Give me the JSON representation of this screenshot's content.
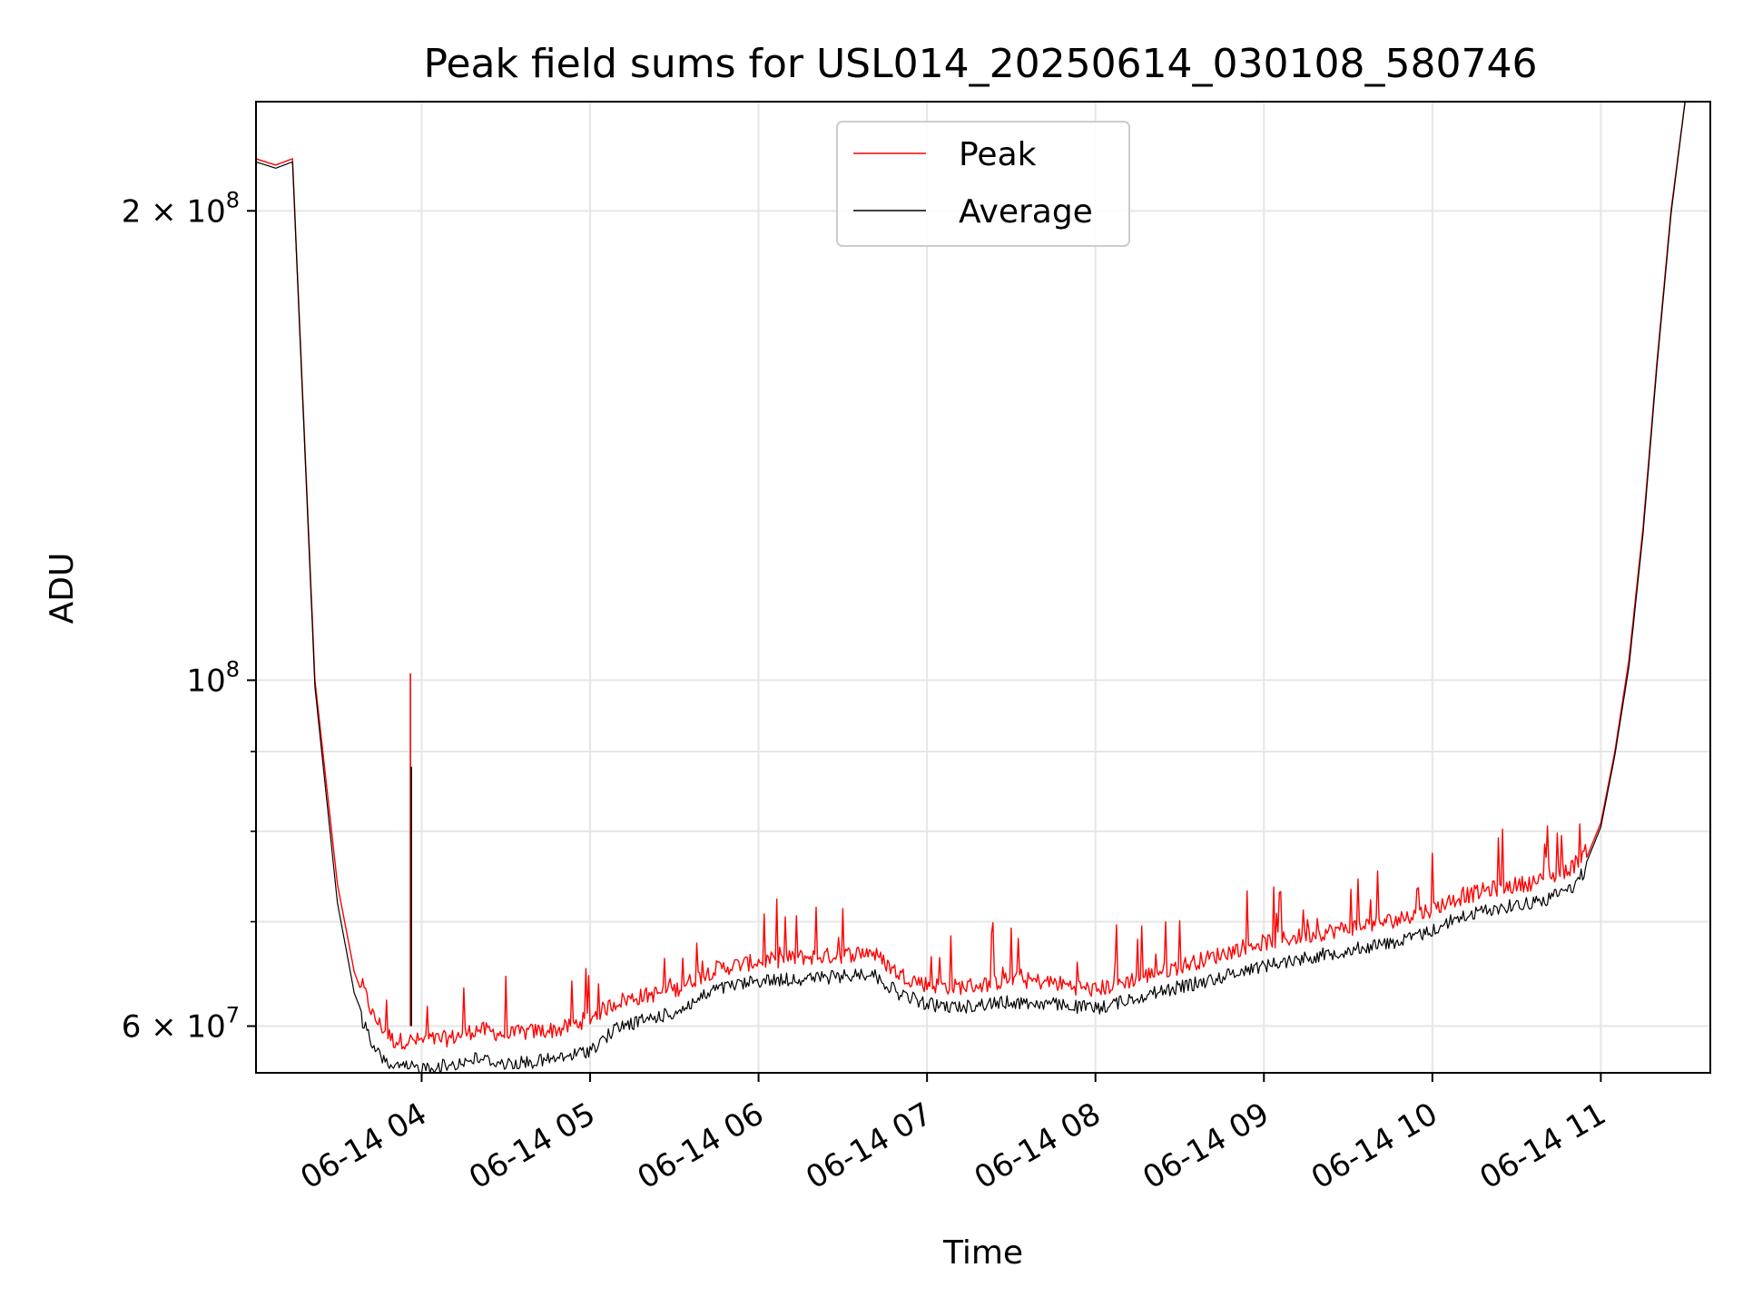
{
  "chart_data": {
    "type": "line",
    "title": "Peak field sums for USL014_20250614_030108_580746",
    "xlabel": "Time",
    "ylabel": "ADU",
    "y_scale": "log",
    "ylim": [
      56000000,
      235000000
    ],
    "xlim": [
      "2025-06-14 03:01",
      "2025-06-14 11:39"
    ],
    "x_ticks": [
      {
        "t": "2025-06-14 04:00",
        "label": "06-14 04"
      },
      {
        "t": "2025-06-14 05:00",
        "label": "06-14 05"
      },
      {
        "t": "2025-06-14 06:00",
        "label": "06-14 06"
      },
      {
        "t": "2025-06-14 07:00",
        "label": "06-14 07"
      },
      {
        "t": "2025-06-14 08:00",
        "label": "06-14 08"
      },
      {
        "t": "2025-06-14 09:00",
        "label": "06-14 09"
      },
      {
        "t": "2025-06-14 10:00",
        "label": "06-14 10"
      },
      {
        "t": "2025-06-14 11:00",
        "label": "06-14 11"
      }
    ],
    "y_major_ticks": [
      {
        "v": 60000000,
        "base": "6 × 10",
        "exp": "7"
      },
      {
        "v": 100000000,
        "base": "10",
        "exp": "8"
      },
      {
        "v": 200000000,
        "base": "2 × 10",
        "exp": "8"
      }
    ],
    "y_minor_ticks": [
      70000000,
      80000000,
      90000000
    ],
    "grid": true,
    "legend_position": "top-center",
    "series": [
      {
        "name": "Peak",
        "color": "#ff0000",
        "x": [
          "2025-06-14 03:01",
          "2025-06-14 03:08",
          "2025-06-14 03:14",
          "2025-06-14 03:22",
          "2025-06-14 03:30",
          "2025-06-14 03:36",
          "2025-06-14 03:43",
          "2025-06-14 03:50",
          "2025-06-14 03:56",
          "2025-06-14 04:00",
          "2025-06-14 04:10",
          "2025-06-14 04:20",
          "2025-06-14 04:30",
          "2025-06-14 04:40",
          "2025-06-14 04:50",
          "2025-06-14 05:00",
          "2025-06-14 05:10",
          "2025-06-14 05:20",
          "2025-06-14 05:30",
          "2025-06-14 05:37",
          "2025-06-14 05:45",
          "2025-06-14 06:00",
          "2025-06-14 06:15",
          "2025-06-14 06:30",
          "2025-06-14 06:40",
          "2025-06-14 06:50",
          "2025-06-14 07:00",
          "2025-06-14 07:10",
          "2025-06-14 07:20",
          "2025-06-14 07:30",
          "2025-06-14 07:45",
          "2025-06-14 08:00",
          "2025-06-14 08:20",
          "2025-06-14 08:40",
          "2025-06-14 08:55",
          "2025-06-14 09:10",
          "2025-06-14 09:30",
          "2025-06-14 09:50",
          "2025-06-14 10:00",
          "2025-06-14 10:08",
          "2025-06-14 10:20",
          "2025-06-14 10:40",
          "2025-06-14 10:50",
          "2025-06-14 10:55",
          "2025-06-14 11:00",
          "2025-06-14 11:05",
          "2025-06-14 11:10",
          "2025-06-14 11:15",
          "2025-06-14 11:20",
          "2025-06-14 11:25",
          "2025-06-14 11:30",
          "2025-06-14 11:39"
        ],
        "y": [
          216000000,
          214000000,
          216000000,
          100000000,
          74000000,
          65000000,
          60000000,
          58000000,
          58000000,
          58000000,
          58200000,
          59000000,
          58500000,
          58800000,
          59000000,
          60000000,
          61500000,
          62000000,
          62500000,
          63500000,
          64500000,
          65200000,
          65600000,
          65800000,
          66200000,
          64000000,
          63000000,
          62800000,
          63000000,
          63500000,
          63200000,
          62500000,
          64000000,
          65500000,
          66800000,
          67500000,
          68500000,
          69500000,
          70500000,
          71500000,
          72500000,
          73500000,
          75000000,
          77000000,
          81000000,
          90000000,
          103000000,
          125000000,
          160000000,
          200000000,
          235000000,
          235000000
        ]
      },
      {
        "name": "Average",
        "color": "#000000",
        "x": [
          "2025-06-14 03:01",
          "2025-06-14 03:08",
          "2025-06-14 03:14",
          "2025-06-14 03:22",
          "2025-06-14 03:30",
          "2025-06-14 03:36",
          "2025-06-14 03:43",
          "2025-06-14 03:50",
          "2025-06-14 03:56",
          "2025-06-14 04:00",
          "2025-06-14 04:10",
          "2025-06-14 04:20",
          "2025-06-14 04:30",
          "2025-06-14 04:40",
          "2025-06-14 04:50",
          "2025-06-14 05:00",
          "2025-06-14 05:10",
          "2025-06-14 05:20",
          "2025-06-14 05:30",
          "2025-06-14 05:37",
          "2025-06-14 05:45",
          "2025-06-14 06:00",
          "2025-06-14 06:15",
          "2025-06-14 06:30",
          "2025-06-14 06:40",
          "2025-06-14 06:50",
          "2025-06-14 07:00",
          "2025-06-14 07:10",
          "2025-06-14 07:20",
          "2025-06-14 07:30",
          "2025-06-14 07:45",
          "2025-06-14 08:00",
          "2025-06-14 08:20",
          "2025-06-14 08:40",
          "2025-06-14 08:55",
          "2025-06-14 09:10",
          "2025-06-14 09:30",
          "2025-06-14 09:50",
          "2025-06-14 10:00",
          "2025-06-14 10:08",
          "2025-06-14 10:20",
          "2025-06-14 10:40",
          "2025-06-14 10:50",
          "2025-06-14 10:55",
          "2025-06-14 11:00",
          "2025-06-14 11:05",
          "2025-06-14 11:10",
          "2025-06-14 11:15",
          "2025-06-14 11:20",
          "2025-06-14 11:25",
          "2025-06-14 11:30",
          "2025-06-14 11:39"
        ],
        "y": [
          215000000,
          213000000,
          215000000,
          99000000,
          72000000,
          63000000,
          58500000,
          57000000,
          57000000,
          57000000,
          57200000,
          57800000,
          57300000,
          57500000,
          57800000,
          58500000,
          60500000,
          61200000,
          61800000,
          62800000,
          64000000,
          64800000,
          65000000,
          65200000,
          65600000,
          63600000,
          62600000,
          62300000,
          62600000,
          62800000,
          62600000,
          62200000,
          63600000,
          64800000,
          66000000,
          66800000,
          67800000,
          68800000,
          69800000,
          71000000,
          72000000,
          73000000,
          74500000,
          76500000,
          80500000,
          89500000,
          102000000,
          124000000,
          159000000,
          199000000,
          235000000,
          235000000
        ]
      }
    ],
    "annotations": [
      {
        "t": "2025-06-14 03:56",
        "peak": 101000000,
        "average": 88000000
      }
    ]
  }
}
